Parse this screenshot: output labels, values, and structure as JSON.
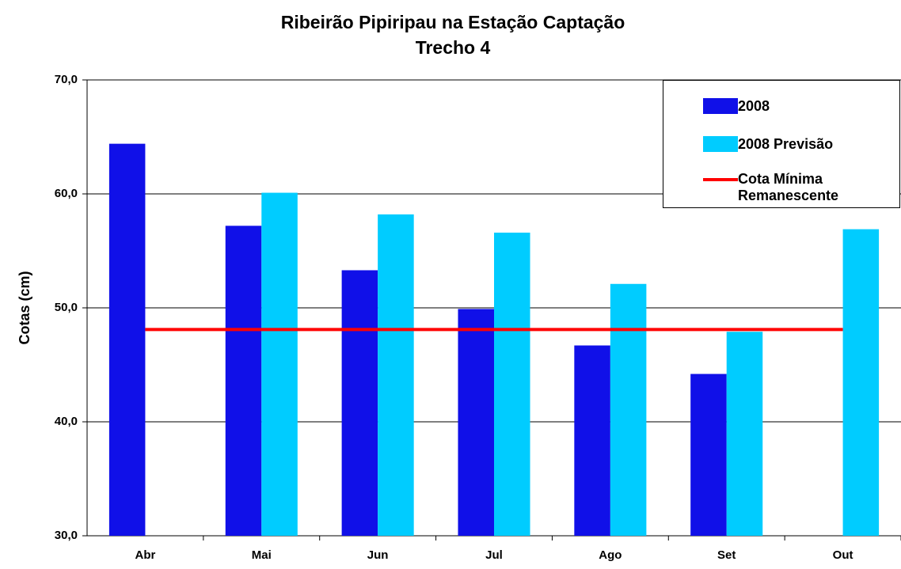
{
  "chart_data": {
    "type": "bar",
    "title": "Ribeirão Pipiripau na Estação Captação",
    "subtitle": "Trecho 4",
    "y_label": "Cotas (cm)",
    "categories": [
      "Abr",
      "Mai",
      "Jun",
      "Jul",
      "Ago",
      "Set",
      "Out"
    ],
    "series": [
      {
        "name": "2008",
        "color": "#1010e8",
        "values": [
          64.4,
          57.2,
          53.3,
          49.9,
          46.7,
          44.2,
          null
        ]
      },
      {
        "name": "2008 Previsão",
        "color": "#00ccff",
        "values": [
          null,
          60.1,
          58.2,
          56.6,
          52.1,
          47.9,
          56.9
        ]
      },
      {
        "name": "Cota Mínima Remanescente",
        "color": "#ff0000",
        "type": "line",
        "values": [
          48.1,
          48.1,
          48.1,
          48.1,
          48.1,
          48.1,
          48.1
        ]
      }
    ],
    "ylim": [
      30,
      70
    ],
    "yticks": [
      {
        "value": 30,
        "label": "30,0"
      },
      {
        "value": 40,
        "label": "40,0"
      },
      {
        "value": 50,
        "label": "50,0"
      },
      {
        "value": 60,
        "label": "60,0"
      },
      {
        "value": 70,
        "label": "70,0"
      }
    ],
    "grid": true
  }
}
